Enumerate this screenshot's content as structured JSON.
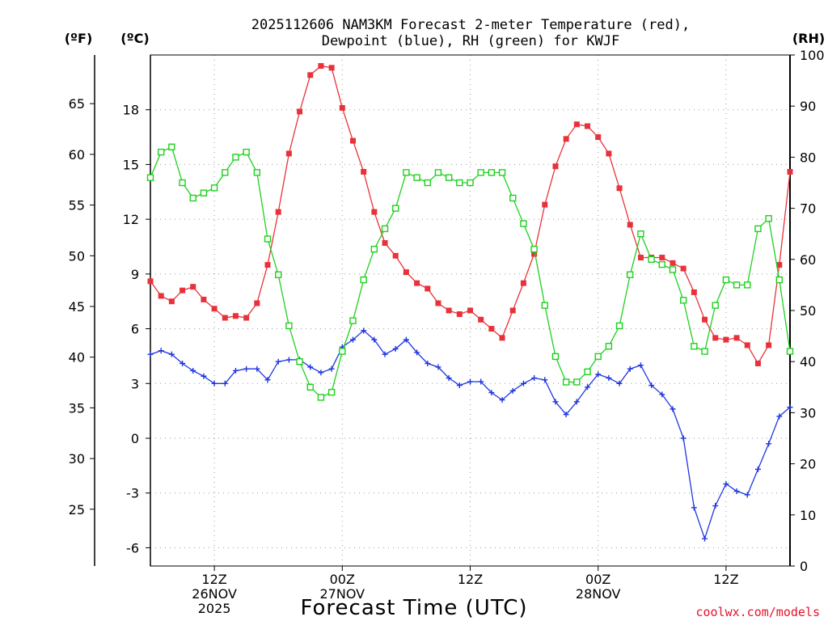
{
  "chart_data": {
    "type": "line",
    "title_line1": "2025112606 NAM3KM Forecast 2-meter Temperature (red),",
    "title_line2": "Dewpoint (blue), RH (green) for KWJF",
    "xlabel": "Forecast Time (UTC)",
    "credit": "coolwx.com/models",
    "units": {
      "fahrenheit": "(ºF)",
      "celsius": "(ºC)",
      "rh": "(RH)"
    },
    "celsius_axis": {
      "range": [
        -7,
        21
      ],
      "ticks": [
        "18",
        "15",
        "12",
        "9",
        "6",
        "3",
        "0",
        "-3",
        "-6"
      ]
    },
    "fahrenheit_axis": {
      "ticks": [
        "65",
        "60",
        "55",
        "50",
        "45",
        "40",
        "35",
        "30",
        "25"
      ]
    },
    "rh_axis": {
      "range": [
        0,
        100
      ],
      "ticks": [
        "100",
        "90",
        "80",
        "70",
        "60",
        "50",
        "40",
        "30",
        "20",
        "10",
        "0"
      ]
    },
    "x_ticks": [
      {
        "hour": 6,
        "lines": [
          "12Z",
          "26NOV",
          "2025"
        ]
      },
      {
        "hour": 18,
        "lines": [
          "00Z",
          "27NOV"
        ]
      },
      {
        "hour": 30,
        "lines": [
          "12Z"
        ]
      },
      {
        "hour": 42,
        "lines": [
          "00Z",
          "28NOV"
        ]
      },
      {
        "hour": 54,
        "lines": [
          "12Z"
        ]
      }
    ],
    "x_range": [
      0,
      60
    ],
    "series": [
      {
        "name": "2-meter Temperature",
        "axis": "celsius",
        "color": "#e8323a",
        "marker": "filled-square",
        "values": [
          8.6,
          7.8,
          7.5,
          8.1,
          8.3,
          7.6,
          7.1,
          6.6,
          6.7,
          6.6,
          7.4,
          9.5,
          12.4,
          15.6,
          17.9,
          19.9,
          20.4,
          20.3,
          18.1,
          16.3,
          14.6,
          12.4,
          10.7,
          10.0,
          9.1,
          8.5,
          8.2,
          7.4,
          7.0,
          6.8,
          7.0,
          6.5,
          6.0,
          5.5,
          7.0,
          8.5,
          10.1,
          12.8,
          14.9,
          16.4,
          17.2,
          17.1,
          16.5,
          15.6,
          13.7,
          11.7,
          9.9,
          9.9,
          9.9,
          9.6,
          9.3,
          8.0,
          6.5,
          5.5,
          5.4,
          5.5,
          5.1,
          4.1,
          5.1,
          9.5,
          14.6
        ]
      },
      {
        "name": "Dewpoint",
        "axis": "celsius",
        "color": "#1f36e0",
        "marker": "plus",
        "values": [
          4.6,
          4.8,
          4.6,
          4.1,
          3.7,
          3.4,
          3.0,
          3.0,
          3.7,
          3.8,
          3.8,
          3.2,
          4.2,
          4.3,
          4.3,
          3.9,
          3.6,
          3.8,
          5.0,
          5.4,
          5.9,
          5.4,
          4.6,
          4.9,
          5.4,
          4.7,
          4.1,
          3.9,
          3.3,
          2.9,
          3.1,
          3.1,
          2.5,
          2.1,
          2.6,
          3.0,
          3.3,
          3.2,
          2.0,
          1.3,
          2.0,
          2.8,
          3.5,
          3.3,
          3.0,
          3.8,
          4.0,
          2.9,
          2.4,
          1.6,
          0.0,
          -3.8,
          -5.5,
          -3.7,
          -2.5,
          -2.9,
          -3.1,
          -1.7,
          -0.3,
          1.2,
          1.7
        ]
      },
      {
        "name": "RH",
        "axis": "rh",
        "color": "#1fd01f",
        "marker": "open-square",
        "values": [
          76,
          81,
          82,
          75,
          72,
          73,
          74,
          77,
          80,
          81,
          77,
          64,
          57,
          47,
          40,
          35,
          33,
          34,
          42,
          48,
          56,
          62,
          66,
          70,
          77,
          76,
          75,
          77,
          76,
          75,
          75,
          77,
          77,
          77,
          72,
          67,
          62,
          51,
          41,
          36,
          36,
          38,
          41,
          43,
          47,
          57,
          65,
          60,
          59,
          58,
          52,
          43,
          42,
          51,
          56,
          55,
          55,
          66,
          68,
          56,
          42
        ]
      }
    ]
  }
}
